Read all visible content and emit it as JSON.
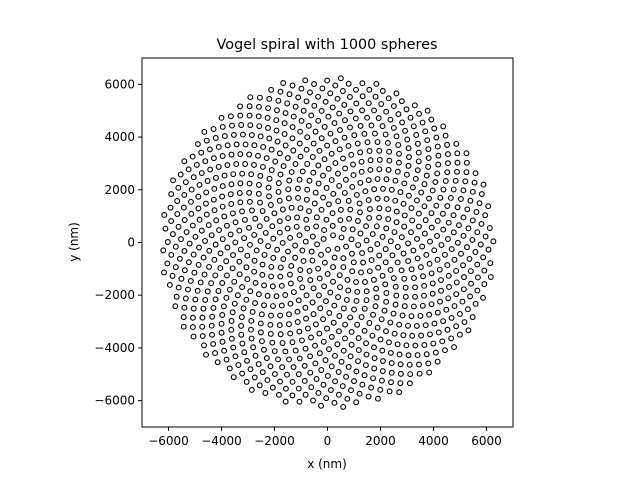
{
  "chart_data": {
    "type": "scatter",
    "title": "Vogel spiral with 1000 spheres",
    "xlabel": "x (nm)",
    "ylabel": "y (nm)",
    "xlim": [
      -7000,
      7000
    ],
    "ylim": [
      -7000,
      7000
    ],
    "xticks": [
      -6000,
      -4000,
      -2000,
      0,
      2000,
      4000,
      6000
    ],
    "yticks": [
      -6000,
      -4000,
      -2000,
      0,
      2000,
      4000,
      6000
    ],
    "xtick_labels": [
      "−6000",
      "−4000",
      "−2000",
      "0",
      "2000",
      "4000",
      "6000"
    ],
    "ytick_labels": [
      "−6000",
      "−4000",
      "−2000",
      "0",
      "2000",
      "4000",
      "6000"
    ],
    "grid": false,
    "marker": "open-circle",
    "marker_color": "#000000",
    "series": [
      {
        "count": 1000,
        "pattern": "vogel-spiral",
        "golden_angle_deg": 137.508,
        "max_radius": 6300
      }
    ]
  }
}
